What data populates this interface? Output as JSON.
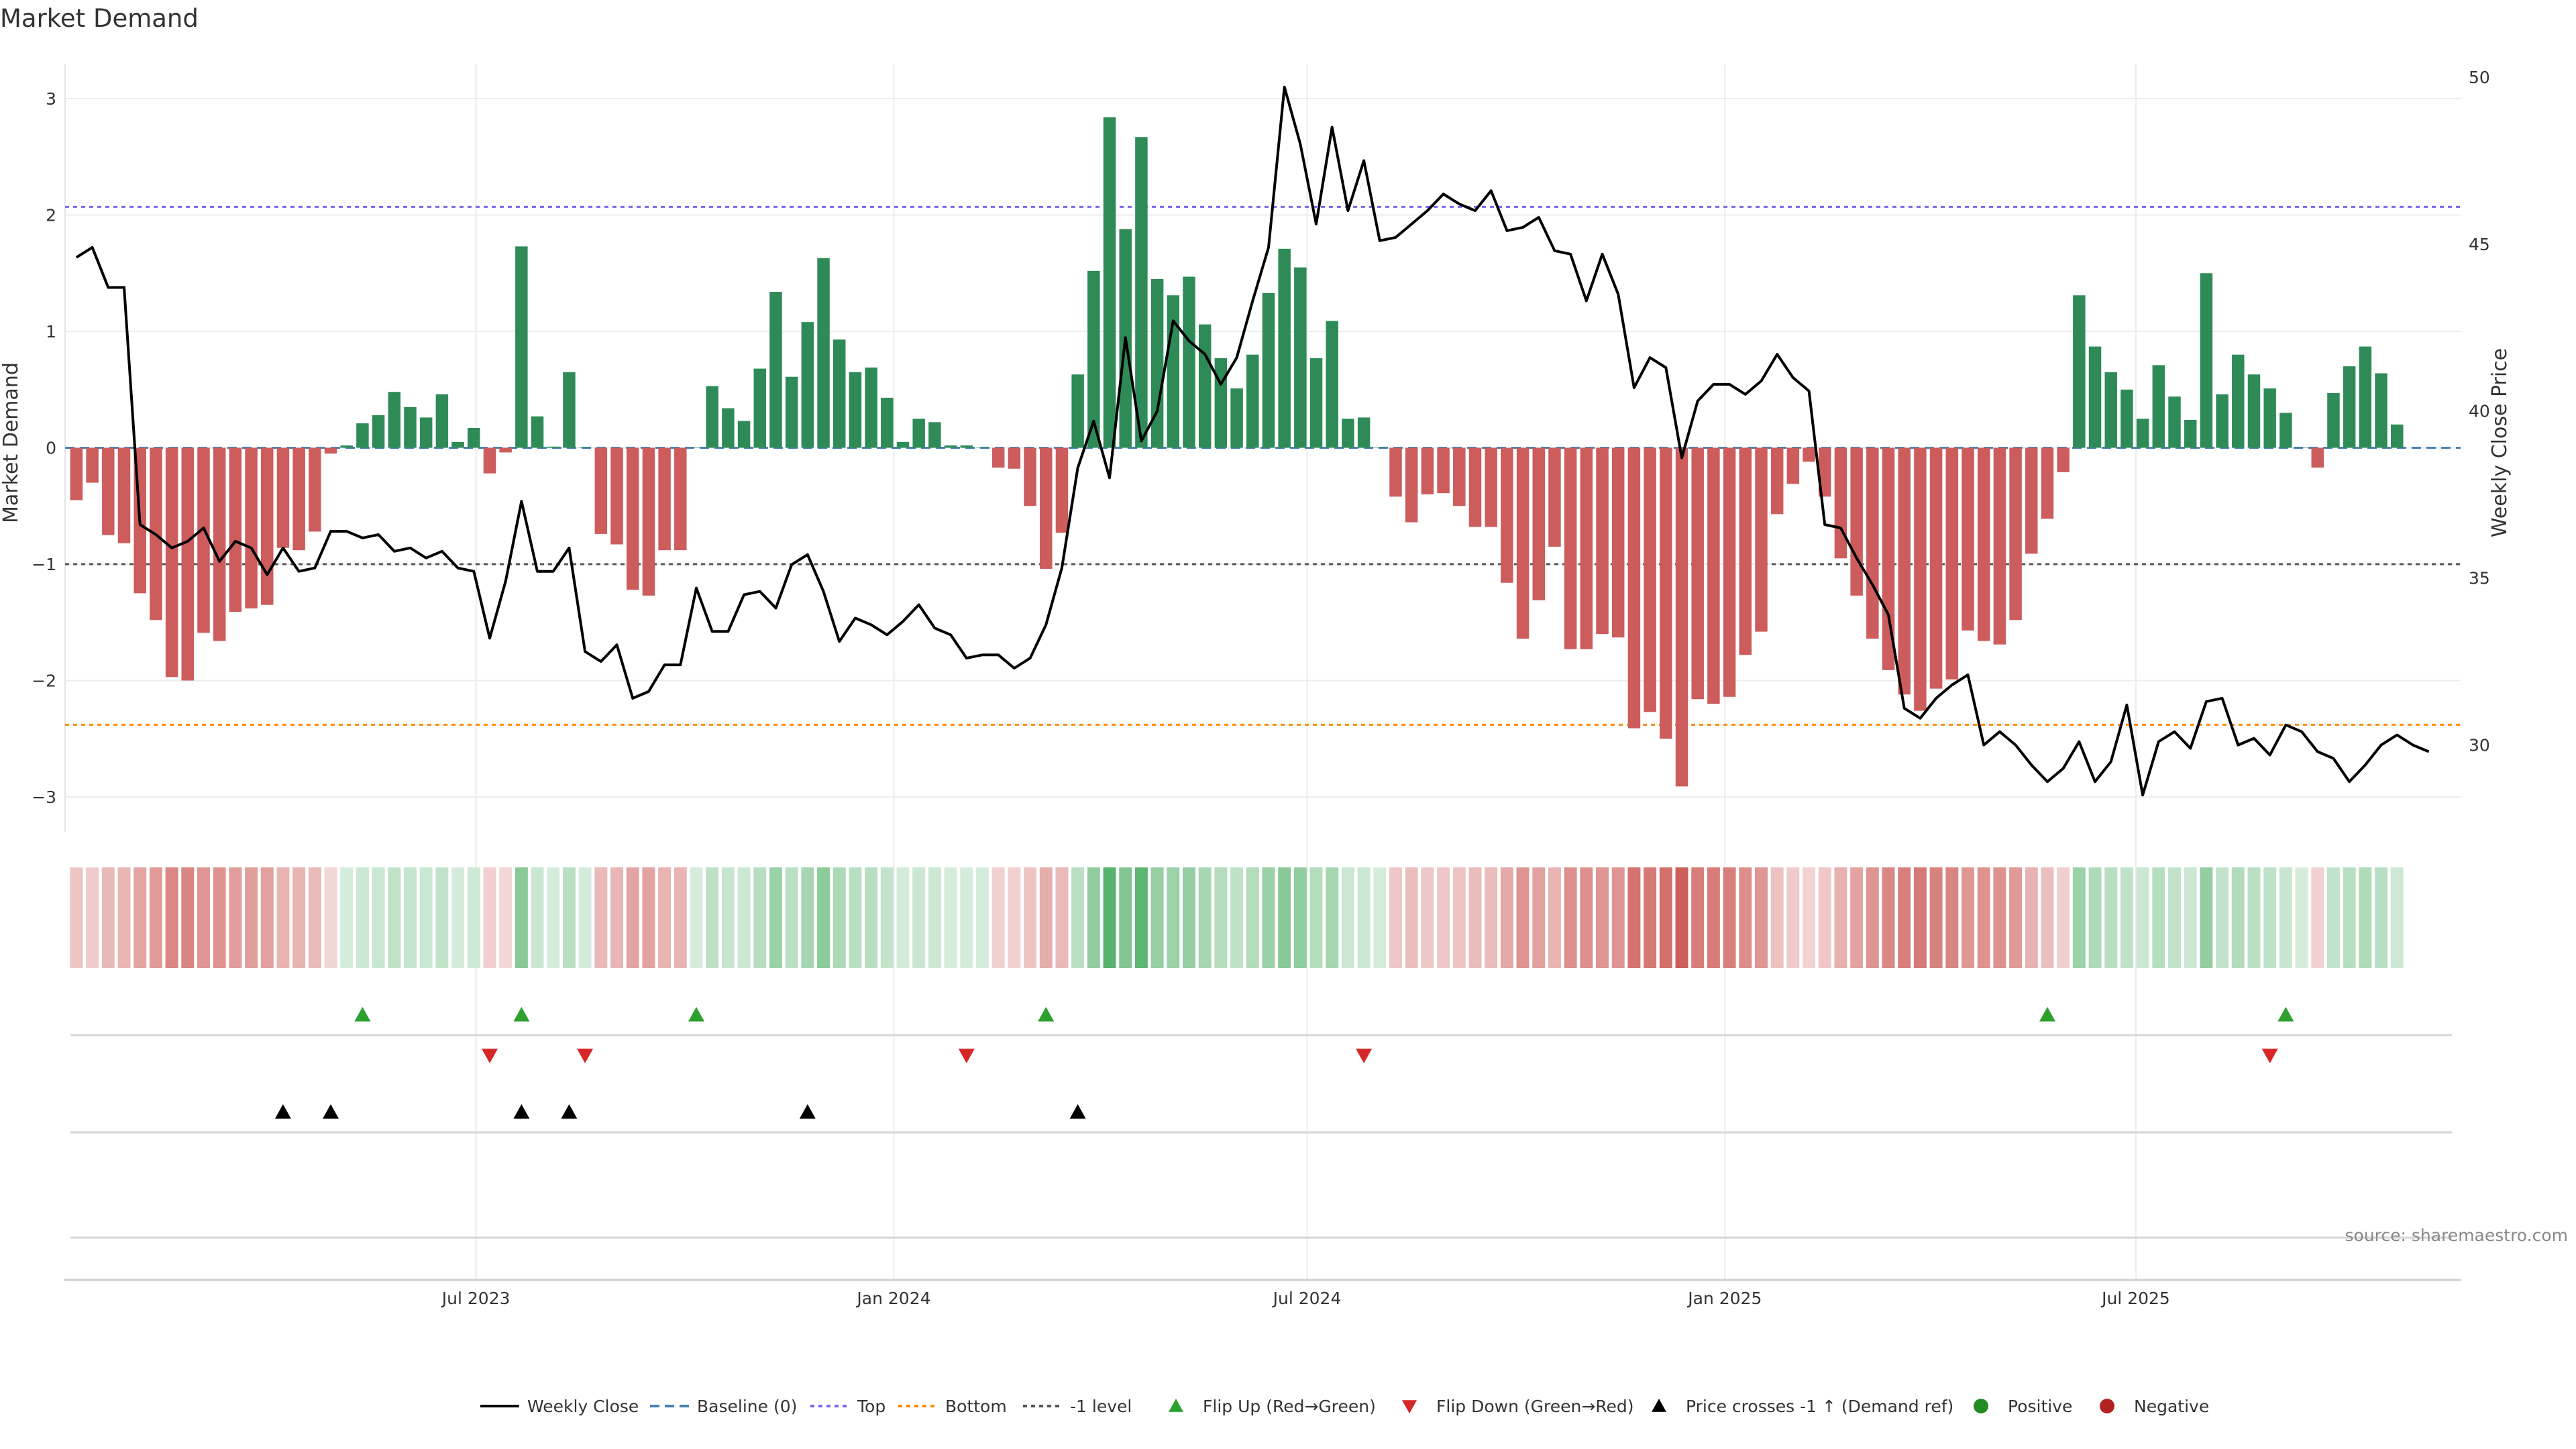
{
  "chart_data": {
    "type": "bar",
    "title": "Market Demand",
    "ylabel": "Market Demand",
    "y2label": "Weekly Close Price",
    "ylim": [
      -3.3,
      3.3
    ],
    "y2lim": [
      27.4,
      50.4
    ],
    "yticks": [
      3,
      2,
      1,
      0,
      -1,
      -2,
      -3
    ],
    "ytick_labels": [
      "3",
      "2",
      "1",
      "0",
      "−1",
      "−2",
      "−3"
    ],
    "y2ticks": [
      50,
      45,
      40,
      35,
      30
    ],
    "y2tick_labels": [
      "50",
      "45",
      "40",
      "35",
      "30"
    ],
    "xlim": [
      "2023-01-01",
      "2025-11-21"
    ],
    "xticks": [
      "2023-07-01",
      "2024-01-01",
      "2024-07-01",
      "2025-01-01",
      "2025-07-01"
    ],
    "xtick_labels": [
      "Jul 2023",
      "Jan 2024",
      "Jul 2024",
      "Jan 2025",
      "Jul 2025"
    ],
    "start_date": "2023-01-06",
    "reference_lines": {
      "baseline": 0,
      "top": 2.07,
      "bottom": -2.38,
      "minus_one": -1
    },
    "series": [
      {
        "name": "Market Demand",
        "kind": "bar",
        "values": [
          -0.45,
          -0.3,
          -0.75,
          -0.82,
          -1.25,
          -1.48,
          -1.97,
          -2.0,
          -1.59,
          -1.66,
          -1.41,
          -1.38,
          -1.35,
          -0.86,
          -0.88,
          -0.72,
          -0.05,
          0.02,
          0.21,
          0.28,
          0.48,
          0.35,
          0.26,
          0.46,
          0.05,
          0.17,
          -0.22,
          -0.04,
          1.73,
          0.27,
          0.01,
          0.65,
          0.0,
          -0.74,
          -0.83,
          -1.22,
          -1.27,
          -0.88,
          -0.88,
          0.0,
          0.53,
          0.34,
          0.23,
          0.68,
          1.34,
          0.61,
          1.08,
          1.63,
          0.93,
          0.65,
          0.69,
          0.43,
          0.05,
          0.25,
          0.22,
          0.02,
          0.02,
          0.0,
          -0.17,
          -0.18,
          -0.5,
          -1.04,
          -0.73,
          0.63,
          1.52,
          2.84,
          1.88,
          2.67,
          1.45,
          1.31,
          1.47,
          1.06,
          0.77,
          0.51,
          0.8,
          1.33,
          1.71,
          1.55,
          0.77,
          1.09,
          0.25,
          0.26,
          0.0,
          -0.42,
          -0.64,
          -0.4,
          -0.39,
          -0.5,
          -0.68,
          -0.68,
          -1.16,
          -1.64,
          -1.31,
          -0.85,
          -1.73,
          -1.73,
          -1.6,
          -1.63,
          -2.41,
          -2.27,
          -2.5,
          -2.91,
          -2.16,
          -2.2,
          -2.14,
          -1.78,
          -1.58,
          -0.57,
          -0.31,
          -0.12,
          -0.42,
          -0.95,
          -1.27,
          -1.64,
          -1.91,
          -2.12,
          -2.26,
          -2.07,
          -1.99,
          -1.57,
          -1.66,
          -1.69,
          -1.48,
          -0.91,
          -0.61,
          -0.21,
          1.31,
          0.87,
          0.65,
          0.5,
          0.25,
          0.71,
          0.44,
          0.24,
          1.5,
          0.46,
          0.8,
          0.63,
          0.51,
          0.3,
          0.0,
          -0.17,
          0.47,
          0.7,
          0.87,
          0.64,
          0.2
        ]
      },
      {
        "name": "Weekly Close",
        "kind": "line",
        "values": [
          44.6,
          44.9,
          43.7,
          43.7,
          36.6,
          36.3,
          35.9,
          36.1,
          36.5,
          35.5,
          36.1,
          35.9,
          35.1,
          35.9,
          35.2,
          35.3,
          36.4,
          36.4,
          36.2,
          36.3,
          35.8,
          35.9,
          35.6,
          35.8,
          35.3,
          35.2,
          33.2,
          34.9,
          37.3,
          35.2,
          35.2,
          35.9,
          32.8,
          32.5,
          33.0,
          31.4,
          31.6,
          32.4,
          32.4,
          34.7,
          33.4,
          33.4,
          34.5,
          34.6,
          34.1,
          35.4,
          35.7,
          34.6,
          33.1,
          33.8,
          33.6,
          33.3,
          33.7,
          34.2,
          33.5,
          33.3,
          32.6,
          32.7,
          32.7,
          32.3,
          32.6,
          33.6,
          35.3,
          38.3,
          39.7,
          38.0,
          42.2,
          39.1,
          40.0,
          42.7,
          42.1,
          41.7,
          40.8,
          41.6,
          43.3,
          44.9,
          49.7,
          48.0,
          45.6,
          48.5,
          46.0,
          47.5,
          45.1,
          45.2,
          45.6,
          46.0,
          46.5,
          46.2,
          46.0,
          46.6,
          45.4,
          45.5,
          45.8,
          44.8,
          44.7,
          43.3,
          44.7,
          43.5,
          40.7,
          41.6,
          41.3,
          38.6,
          40.3,
          40.8,
          40.8,
          40.5,
          40.9,
          41.7,
          41.0,
          40.6,
          36.6,
          36.5,
          35.6,
          34.8,
          33.9,
          31.1,
          30.8,
          31.4,
          31.8,
          32.1,
          30.0,
          30.4,
          30.0,
          29.4,
          28.9,
          29.3,
          30.1,
          28.9,
          29.5,
          31.2,
          28.5,
          30.1,
          30.4,
          29.9,
          31.3,
          31.4,
          30.0,
          30.2,
          29.7,
          30.6,
          30.4,
          29.8,
          29.6,
          28.9,
          29.4,
          30.0,
          30.3,
          30.0,
          29.8
        ]
      }
    ],
    "flip_up_weeks": [
      18,
      28,
      39,
      61,
      124,
      139
    ],
    "flip_down_weeks": [
      26,
      32,
      56,
      81,
      138
    ],
    "price_cross_weeks": [
      13,
      16,
      28,
      31,
      46,
      63
    ],
    "legend": {
      "position": "bottom",
      "entries": [
        "Weekly Close",
        "Baseline (0)",
        "Top",
        "Bottom",
        "-1 level",
        "Flip Up (Red→Green)",
        "Flip Down (Green→Red)",
        "Price crosses -1 ↑ (Demand ref)",
        "Positive",
        "Negative"
      ]
    },
    "colors": {
      "positive": "#2e8b57",
      "negative": "#cd5c5c",
      "line": "#000000",
      "baseline": "#4682b4",
      "top": "#7b68ee",
      "bottom": "#ff8c00",
      "minus_one": "#555555",
      "flip_up": "#2ca02c",
      "flip_down": "#d62728",
      "cross": "#000000",
      "dot_positive": "#228b22",
      "dot_negative": "#b22222"
    },
    "source": "source: sharemaestro.com"
  }
}
